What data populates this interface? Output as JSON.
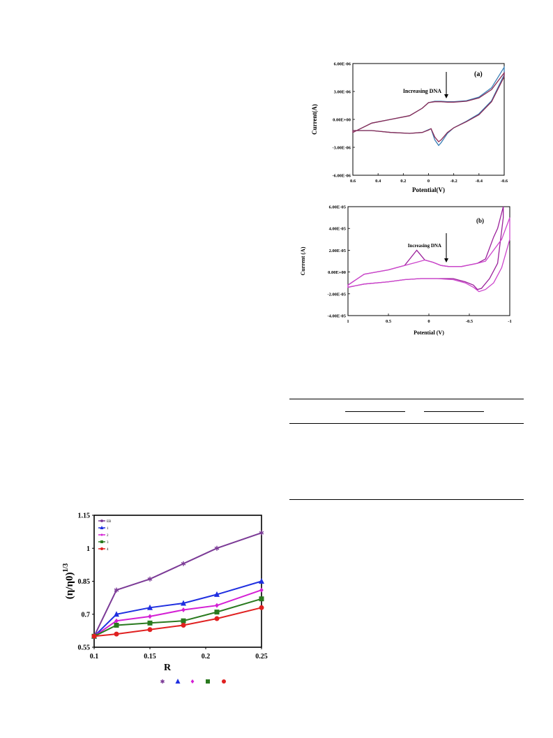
{
  "chart_data": [
    {
      "type": "line",
      "panel_label": "(a)",
      "annotation": "Increasing DNA",
      "xlabel": "Potential(V)",
      "ylabel": "Current(A)",
      "xlim": [
        0.6,
        -0.6
      ],
      "ylim": [
        -6e-06,
        6e-06
      ],
      "x_ticks": [
        "0.6",
        "0.4",
        "0.2",
        "0",
        "-0.2",
        "-0.4",
        "-0.6"
      ],
      "y_ticks": [
        "-6.00E-06",
        "-3.00E-06",
        "0.00E+00",
        "3.00E-06",
        "6.00E-06"
      ],
      "series": [
        {
          "color": "#3a7fb5",
          "x": [
            0.6,
            0.45,
            0.3,
            0.15,
            0.05,
            0.0,
            -0.05,
            -0.1,
            -0.15,
            -0.2,
            -0.3,
            -0.4,
            -0.5,
            -0.6,
            -0.6,
            -0.5,
            -0.4,
            -0.3,
            -0.2,
            -0.15,
            -0.1,
            -0.08,
            -0.05,
            -0.02,
            0.0,
            0.05,
            0.15,
            0.3,
            0.45,
            0.6
          ],
          "y": [
            -1.4e-06,
            -4e-07,
            0.0,
            4e-07,
            1.2e-06,
            1.8e-06,
            1.95e-06,
            1.95e-06,
            1.9e-06,
            1.9e-06,
            2e-06,
            2.4e-06,
            3.4e-06,
            5.6e-06,
            4.8e-06,
            2e-06,
            6e-07,
            -2e-07,
            -9e-07,
            -1.5e-06,
            -2.5e-06,
            -2.8e-06,
            -2.2e-06,
            -1e-06,
            -1.1e-06,
            -1.4e-06,
            -1.5e-06,
            -1.4e-06,
            -1.2e-06,
            -1.2e-06
          ]
        },
        {
          "color": "#8a2a55",
          "x": [
            0.6,
            0.45,
            0.3,
            0.15,
            0.05,
            0.0,
            -0.05,
            -0.1,
            -0.15,
            -0.2,
            -0.3,
            -0.4,
            -0.5,
            -0.6,
            -0.6,
            -0.5,
            -0.4,
            -0.3,
            -0.2,
            -0.15,
            -0.1,
            -0.08,
            -0.05,
            -0.02,
            0.0,
            0.05,
            0.15,
            0.3,
            0.45,
            0.6
          ],
          "y": [
            -1.4e-06,
            -4e-07,
            0.0,
            4e-07,
            1.2e-06,
            1.8e-06,
            1.9e-06,
            1.9e-06,
            1.85e-06,
            1.85e-06,
            1.95e-06,
            2.3e-06,
            3.2e-06,
            5e-06,
            4.6e-06,
            1.9e-06,
            5e-07,
            -2.5e-07,
            -9e-07,
            -1.4e-06,
            -2.2e-06,
            -2.4e-06,
            -1.9e-06,
            -1e-06,
            -1.15e-06,
            -1.4e-06,
            -1.5e-06,
            -1.4e-06,
            -1.2e-06,
            -1.2e-06
          ]
        }
      ]
    },
    {
      "type": "line",
      "panel_label": "(b)",
      "annotation": "Increasing DNA",
      "xlabel": "Potential (V)",
      "ylabel": "Current (A)",
      "xlim": [
        1,
        -1
      ],
      "ylim": [
        -4e-05,
        6e-05
      ],
      "x_ticks": [
        "1",
        "0.5",
        "0",
        "-0.5",
        "-1"
      ],
      "y_ticks": [
        "-4.00E-05",
        "-2.00E-05",
        "0.00E+00",
        "2.00E-05",
        "4.00E-05",
        "6.00E-05"
      ],
      "series": [
        {
          "color": "#9a1f9a",
          "x": [
            1.0,
            0.8,
            0.5,
            0.3,
            0.15,
            0.05,
            -0.05,
            -0.15,
            -0.25,
            -0.4,
            -0.6,
            -0.7,
            -0.8,
            -0.85,
            -0.92,
            -0.92,
            -0.85,
            -0.75,
            -0.65,
            -0.6,
            -0.55,
            -0.45,
            -0.3,
            -0.1,
            0.1,
            0.3,
            0.5,
            0.8,
            1.0
          ],
          "y": [
            -1.2e-05,
            -2e-06,
            2e-06,
            6e-06,
            2e-05,
            1.1e-05,
            9e-06,
            6e-06,
            5e-06,
            5e-06,
            8e-06,
            1.2e-05,
            3.2e-05,
            4e-05,
            6e-05,
            5e-05,
            8e-06,
            -6e-06,
            -1.5e-05,
            -1.6e-05,
            -1.2e-05,
            -9e-06,
            -6e-06,
            -6e-06,
            -6e-06,
            -7e-06,
            -9e-06,
            -1.1e-05,
            -1.4e-05
          ]
        },
        {
          "color": "#cc44cc",
          "x": [
            1.0,
            0.8,
            0.5,
            0.3,
            0.15,
            0.05,
            -0.05,
            -0.15,
            -0.25,
            -0.4,
            -0.6,
            -0.7,
            -0.8,
            -0.9,
            -1.0,
            -1.0,
            -0.9,
            -0.8,
            -0.7,
            -0.62,
            -0.55,
            -0.45,
            -0.3,
            -0.1,
            0.1,
            0.3,
            0.5,
            0.8,
            1.0
          ],
          "y": [
            -1.2e-05,
            -2e-06,
            2e-06,
            6e-06,
            9e-06,
            1.1e-05,
            9e-06,
            6e-06,
            5e-06,
            5e-06,
            8e-06,
            1e-05,
            2e-05,
            3e-05,
            5e-05,
            3e-05,
            4e-06,
            -1e-05,
            -1.6e-05,
            -1.8e-05,
            -1.4e-05,
            -1e-05,
            -7e-06,
            -6e-06,
            -6e-06,
            -7e-06,
            -9e-06,
            -1.1e-05,
            -1.4e-05
          ]
        }
      ]
    },
    {
      "type": "line",
      "xlabel": "R",
      "ylabel": "(η/η0)1/3",
      "xlim": [
        0.1,
        0.25
      ],
      "ylim": [
        0.55,
        1.15
      ],
      "x_ticks": [
        "0.1",
        "0.15",
        "0.2",
        "0.25"
      ],
      "y_ticks": [
        "0.55",
        "0.7",
        "0.85",
        "1",
        "1.15"
      ],
      "legend_labels": [
        "EB",
        "1",
        "2",
        "3",
        "4"
      ],
      "x": [
        0.1,
        0.12,
        0.15,
        0.18,
        0.21,
        0.25
      ],
      "series": [
        {
          "name": "EB",
          "color": "#7b3a96",
          "marker": "star",
          "values": [
            0.6,
            0.81,
            0.86,
            0.93,
            1.0,
            1.07
          ]
        },
        {
          "name": "1",
          "color": "#1f2fe0",
          "marker": "triangle",
          "values": [
            0.6,
            0.7,
            0.73,
            0.75,
            0.79,
            0.85
          ]
        },
        {
          "name": "2",
          "color": "#d41fd4",
          "marker": "diamond",
          "values": [
            0.6,
            0.67,
            0.69,
            0.72,
            0.74,
            0.81
          ]
        },
        {
          "name": "3",
          "color": "#2a7a1f",
          "marker": "square",
          "values": [
            0.6,
            0.65,
            0.66,
            0.67,
            0.71,
            0.77
          ]
        },
        {
          "name": "4",
          "color": "#e02020",
          "marker": "circle",
          "values": [
            0.6,
            0.61,
            0.63,
            0.65,
            0.68,
            0.73
          ]
        }
      ]
    }
  ]
}
